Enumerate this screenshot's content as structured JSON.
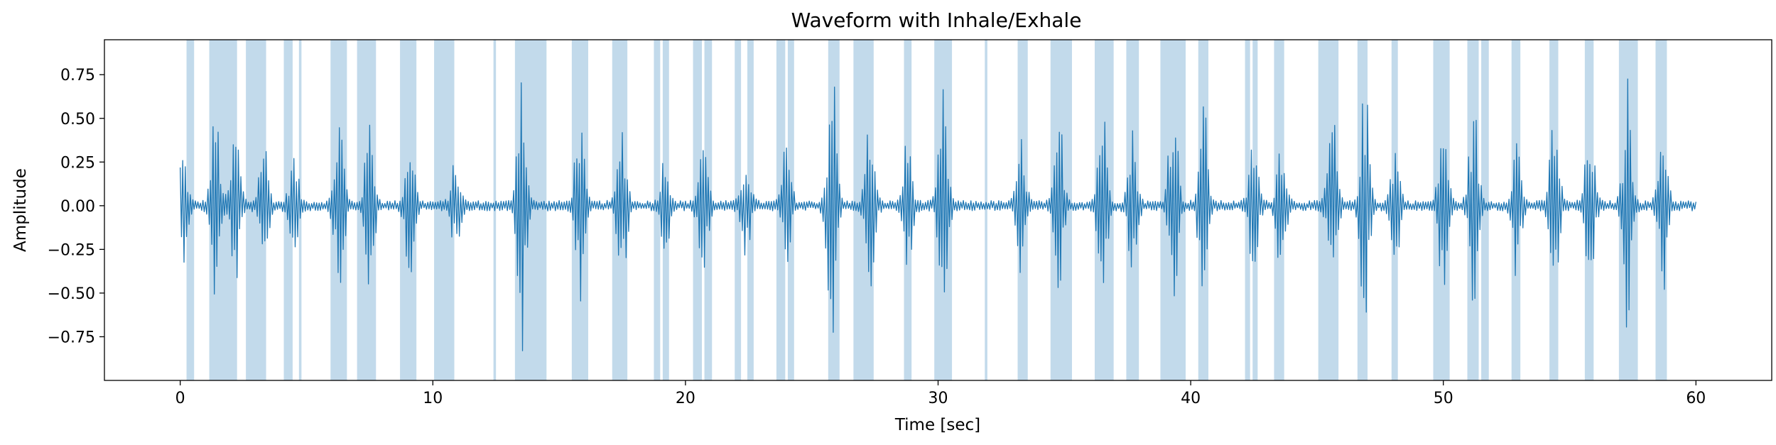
{
  "chart_data": {
    "type": "line",
    "title": "Waveform with Inhale/Exhale",
    "xlabel": "Time [sec]",
    "ylabel": "Amplitude",
    "xlim": [
      -3,
      63
    ],
    "ylim": [
      -1.0,
      0.95
    ],
    "x_ticks": [
      0,
      10,
      20,
      30,
      40,
      50,
      60
    ],
    "x_tick_labels": [
      "0",
      "10",
      "20",
      "30",
      "40",
      "50",
      "60"
    ],
    "y_ticks": [
      -0.75,
      -0.5,
      -0.25,
      0.0,
      0.25,
      0.5,
      0.75
    ],
    "y_tick_labels": [
      "−0.75",
      "−0.50",
      "−0.25",
      "0.00",
      "0.25",
      "0.50",
      "0.75"
    ],
    "grid": false,
    "colors": {
      "line": "#1f77b4",
      "span": "#1f77b4"
    },
    "series": [
      {
        "sample_count": 1200,
        "duration_sec": 60,
        "noise_amplitude": 0.03,
        "bursts": [
          {
            "t": 0.1,
            "amp": 0.31
          },
          {
            "t": 1.4,
            "amp": 0.55
          },
          {
            "t": 2.2,
            "amp": 0.45
          },
          {
            "t": 3.3,
            "amp": 0.4
          },
          {
            "t": 4.5,
            "amp": 0.28
          },
          {
            "t": 6.3,
            "amp": 0.55
          },
          {
            "t": 7.5,
            "amp": 0.5
          },
          {
            "t": 9.1,
            "amp": 0.42
          },
          {
            "t": 10.9,
            "amp": 0.25
          },
          {
            "t": 13.5,
            "amp": 0.9
          },
          {
            "t": 15.8,
            "amp": 0.55
          },
          {
            "t": 17.5,
            "amp": 0.48
          },
          {
            "t": 19.2,
            "amp": 0.3
          },
          {
            "t": 20.7,
            "amp": 0.45
          },
          {
            "t": 22.4,
            "amp": 0.3
          },
          {
            "t": 24.0,
            "amp": 0.35
          },
          {
            "t": 25.8,
            "amp": 0.85
          },
          {
            "t": 27.3,
            "amp": 0.5
          },
          {
            "t": 28.8,
            "amp": 0.4
          },
          {
            "t": 30.2,
            "amp": 0.65
          },
          {
            "t": 33.3,
            "amp": 0.38
          },
          {
            "t": 34.8,
            "amp": 0.5
          },
          {
            "t": 36.5,
            "amp": 0.6
          },
          {
            "t": 37.7,
            "amp": 0.43
          },
          {
            "t": 39.3,
            "amp": 0.72
          },
          {
            "t": 40.5,
            "amp": 0.6
          },
          {
            "t": 42.5,
            "amp": 0.4
          },
          {
            "t": 43.6,
            "amp": 0.45
          },
          {
            "t": 45.6,
            "amp": 0.55
          },
          {
            "t": 46.9,
            "amp": 0.7
          },
          {
            "t": 48.1,
            "amp": 0.35
          },
          {
            "t": 50.0,
            "amp": 0.52
          },
          {
            "t": 51.2,
            "amp": 0.6
          },
          {
            "t": 52.9,
            "amp": 0.4
          },
          {
            "t": 54.4,
            "amp": 0.58
          },
          {
            "t": 55.8,
            "amp": 0.48
          },
          {
            "t": 57.3,
            "amp": 0.72
          },
          {
            "t": 58.7,
            "amp": 0.5
          }
        ]
      }
    ],
    "inhale_exhale_spans": [
      [
        0.25,
        0.55
      ],
      [
        1.15,
        2.25
      ],
      [
        2.6,
        3.4
      ],
      [
        4.1,
        4.45
      ],
      [
        4.7,
        4.8
      ],
      [
        5.95,
        6.6
      ],
      [
        7.0,
        7.75
      ],
      [
        8.7,
        9.35
      ],
      [
        10.05,
        10.85
      ],
      [
        12.4,
        12.5
      ],
      [
        13.25,
        14.5
      ],
      [
        15.5,
        16.15
      ],
      [
        17.1,
        17.7
      ],
      [
        18.75,
        19.0
      ],
      [
        19.1,
        19.35
      ],
      [
        20.3,
        20.65
      ],
      [
        20.75,
        21.05
      ],
      [
        21.95,
        22.2
      ],
      [
        22.45,
        22.7
      ],
      [
        23.6,
        23.95
      ],
      [
        24.05,
        24.3
      ],
      [
        25.65,
        26.1
      ],
      [
        26.65,
        27.45
      ],
      [
        28.65,
        28.95
      ],
      [
        29.85,
        30.55
      ],
      [
        31.85,
        31.95
      ],
      [
        33.15,
        33.55
      ],
      [
        34.45,
        35.3
      ],
      [
        36.2,
        36.95
      ],
      [
        37.45,
        37.95
      ],
      [
        38.8,
        39.8
      ],
      [
        40.3,
        40.7
      ],
      [
        42.15,
        42.35
      ],
      [
        42.45,
        42.65
      ],
      [
        43.3,
        43.7
      ],
      [
        45.05,
        45.85
      ],
      [
        46.6,
        47.0
      ],
      [
        47.95,
        48.2
      ],
      [
        49.6,
        50.25
      ],
      [
        50.95,
        51.4
      ],
      [
        51.5,
        51.8
      ],
      [
        52.7,
        53.05
      ],
      [
        54.2,
        54.55
      ],
      [
        55.6,
        55.95
      ],
      [
        56.95,
        57.7
      ],
      [
        58.4,
        58.85
      ]
    ]
  }
}
